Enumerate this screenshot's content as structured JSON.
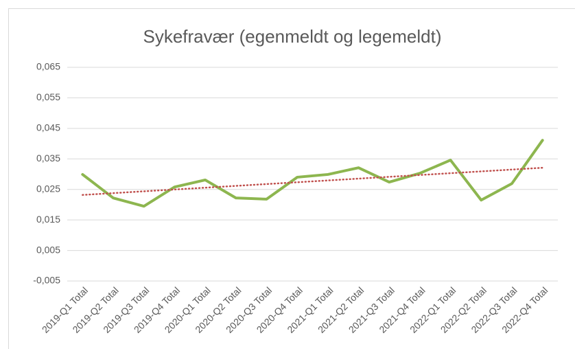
{
  "chart_data": {
    "type": "line",
    "title": "Sykefravær (egenmeldt og legemeldt)",
    "categories": [
      "2019-Q1 Total",
      "2019-Q2 Total",
      "2019-Q3 Total",
      "2019-Q4 Total",
      "2020-Q1 Total",
      "2020-Q2 Total",
      "2020-Q3 Total",
      "2020-Q4 Total",
      "2021-Q1 Total",
      "2021-Q2 Total",
      "2021-Q3 Total",
      "2021-Q4 Total",
      "2022-Q1 Total",
      "2022-Q2 Total",
      "2022-Q3 Total",
      "2022-Q4 Total"
    ],
    "series": [
      {
        "color": "#8db64f",
        "values": [
          0.0299,
          0.0222,
          0.0195,
          0.0258,
          0.0281,
          0.0222,
          0.0218,
          0.029,
          0.0299,
          0.0321,
          0.0274,
          0.0303,
          0.0346,
          0.0215,
          0.0269,
          0.0411
        ]
      }
    ],
    "trendline": {
      "type": "linear",
      "color": "#c0504d"
    },
    "ylim": [
      -0.005,
      0.065
    ],
    "yticks": [
      {
        "value": -0.005,
        "label": "-0,005"
      },
      {
        "value": 0.005,
        "label": "0,005"
      },
      {
        "value": 0.015,
        "label": "0,015"
      },
      {
        "value": 0.025,
        "label": "0,025"
      },
      {
        "value": 0.035,
        "label": "0,035"
      },
      {
        "value": 0.045,
        "label": "0,045"
      },
      {
        "value": 0.055,
        "label": "0,055"
      },
      {
        "value": 0.065,
        "label": "0,065"
      }
    ],
    "grid": true
  }
}
